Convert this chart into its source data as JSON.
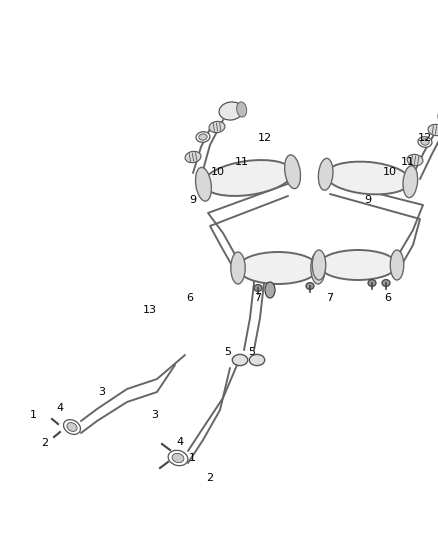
{
  "bg_color": "#ffffff",
  "line_color": "#666666",
  "text_color": "#000000",
  "fig_width": 4.38,
  "fig_height": 5.33,
  "dpi": 100,
  "lw_pipe": 1.4,
  "lw_thin": 0.9
}
